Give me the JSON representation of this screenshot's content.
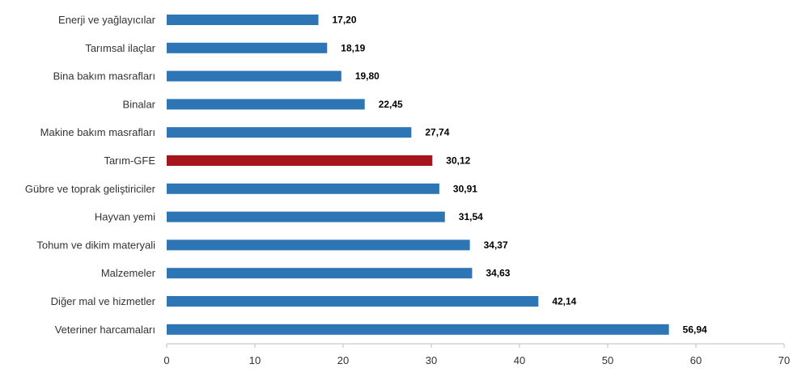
{
  "chart_data": {
    "type": "bar",
    "orientation": "horizontal",
    "categories": [
      "Enerji  ve yağlayıcılar",
      "Tarımsal ilaçlar",
      "Bina bakım masrafları",
      "Binalar",
      "Makine bakım masrafları",
      "Tarım-GFE",
      "Gübre ve toprak geliştiriciler",
      "Hayvan yemi",
      "Tohum ve dikim materyali",
      "Malzemeler",
      "Diğer mal ve hizmetler",
      "Veteriner harcamaları"
    ],
    "values": [
      17.2,
      18.19,
      19.8,
      22.45,
      27.74,
      30.12,
      30.91,
      31.54,
      34.37,
      34.63,
      42.14,
      56.94
    ],
    "value_labels": [
      "17,20",
      "18,19",
      "19,80",
      "22,45",
      "27,74",
      "30,12",
      "30,91",
      "31,54",
      "34,37",
      "34,63",
      "42,14",
      "56,94"
    ],
    "highlight_index": 5,
    "colors": {
      "bar": "#2e75b6",
      "highlight": "#a6151c",
      "axis": "#bfbfbf"
    },
    "xlim": [
      0,
      70
    ],
    "xticks": [
      0,
      10,
      20,
      30,
      40,
      50,
      60,
      70
    ],
    "grid": false,
    "title": "",
    "xlabel": "",
    "ylabel": ""
  }
}
